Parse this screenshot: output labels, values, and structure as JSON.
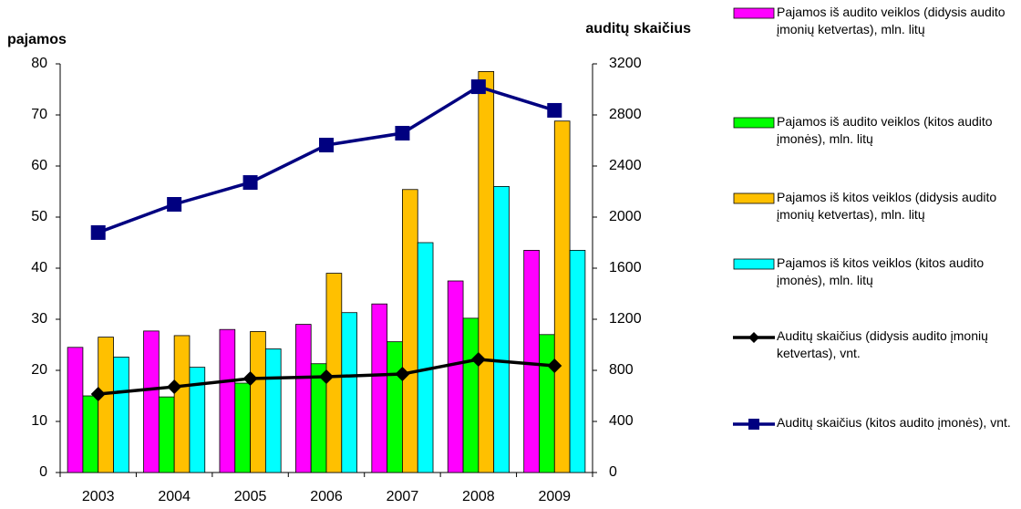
{
  "chart_data": {
    "type": "bar",
    "y_label": "pajamos",
    "y2_label": "auditų skaičius",
    "categories": [
      "2003",
      "2004",
      "2005",
      "2006",
      "2007",
      "2008",
      "2009"
    ],
    "ylim": [
      0,
      80
    ],
    "yticks": [
      0,
      10,
      20,
      30,
      40,
      50,
      60,
      70,
      80
    ],
    "y2lim": [
      0,
      3200
    ],
    "y2ticks": [
      0,
      400,
      800,
      1200,
      1600,
      2000,
      2400,
      2800,
      3200
    ],
    "series": [
      {
        "name": "Pajamos iš audito veiklos (didysis audito įmonių ketvertas), mln. litų",
        "color": "#ff00ff",
        "values": [
          24.5,
          27.7,
          28,
          29,
          33,
          37.5,
          43.5
        ]
      },
      {
        "name": "Pajamos iš audito veiklos (kitos audito įmonės), mln. litų",
        "color": "#00ff00",
        "values": [
          15,
          14.8,
          17.5,
          21.3,
          25.6,
          30.2,
          27
        ]
      },
      {
        "name": "Pajamos iš kitos veiklos (didysis audito įmonių ketvertas), mln. litų",
        "color": "#ffc000",
        "values": [
          26.5,
          26.8,
          27.6,
          39,
          55.4,
          78.5,
          68.8
        ]
      },
      {
        "name": "Pajamos iš kitos veiklos (kitos audito įmonės), mln. litų",
        "color": "#00ffff",
        "values": [
          22.6,
          20.6,
          24.2,
          31.3,
          45,
          56,
          43.5
        ]
      },
      {
        "name": "Auditų skaičius (didysis audito įmonių ketvertas), vnt.",
        "color": "#000000",
        "type": "line",
        "marker": "diamond",
        "axis": "y2",
        "values": [
          614,
          671,
          736,
          750,
          771,
          886,
          836
        ]
      },
      {
        "name": "Auditų skaičius (kitos audito įmonės), vnt.",
        "color": "#000080",
        "type": "line",
        "marker": "square",
        "axis": "y2",
        "values": [
          1879,
          2100,
          2271,
          2564,
          2657,
          3021,
          2836
        ]
      }
    ]
  }
}
